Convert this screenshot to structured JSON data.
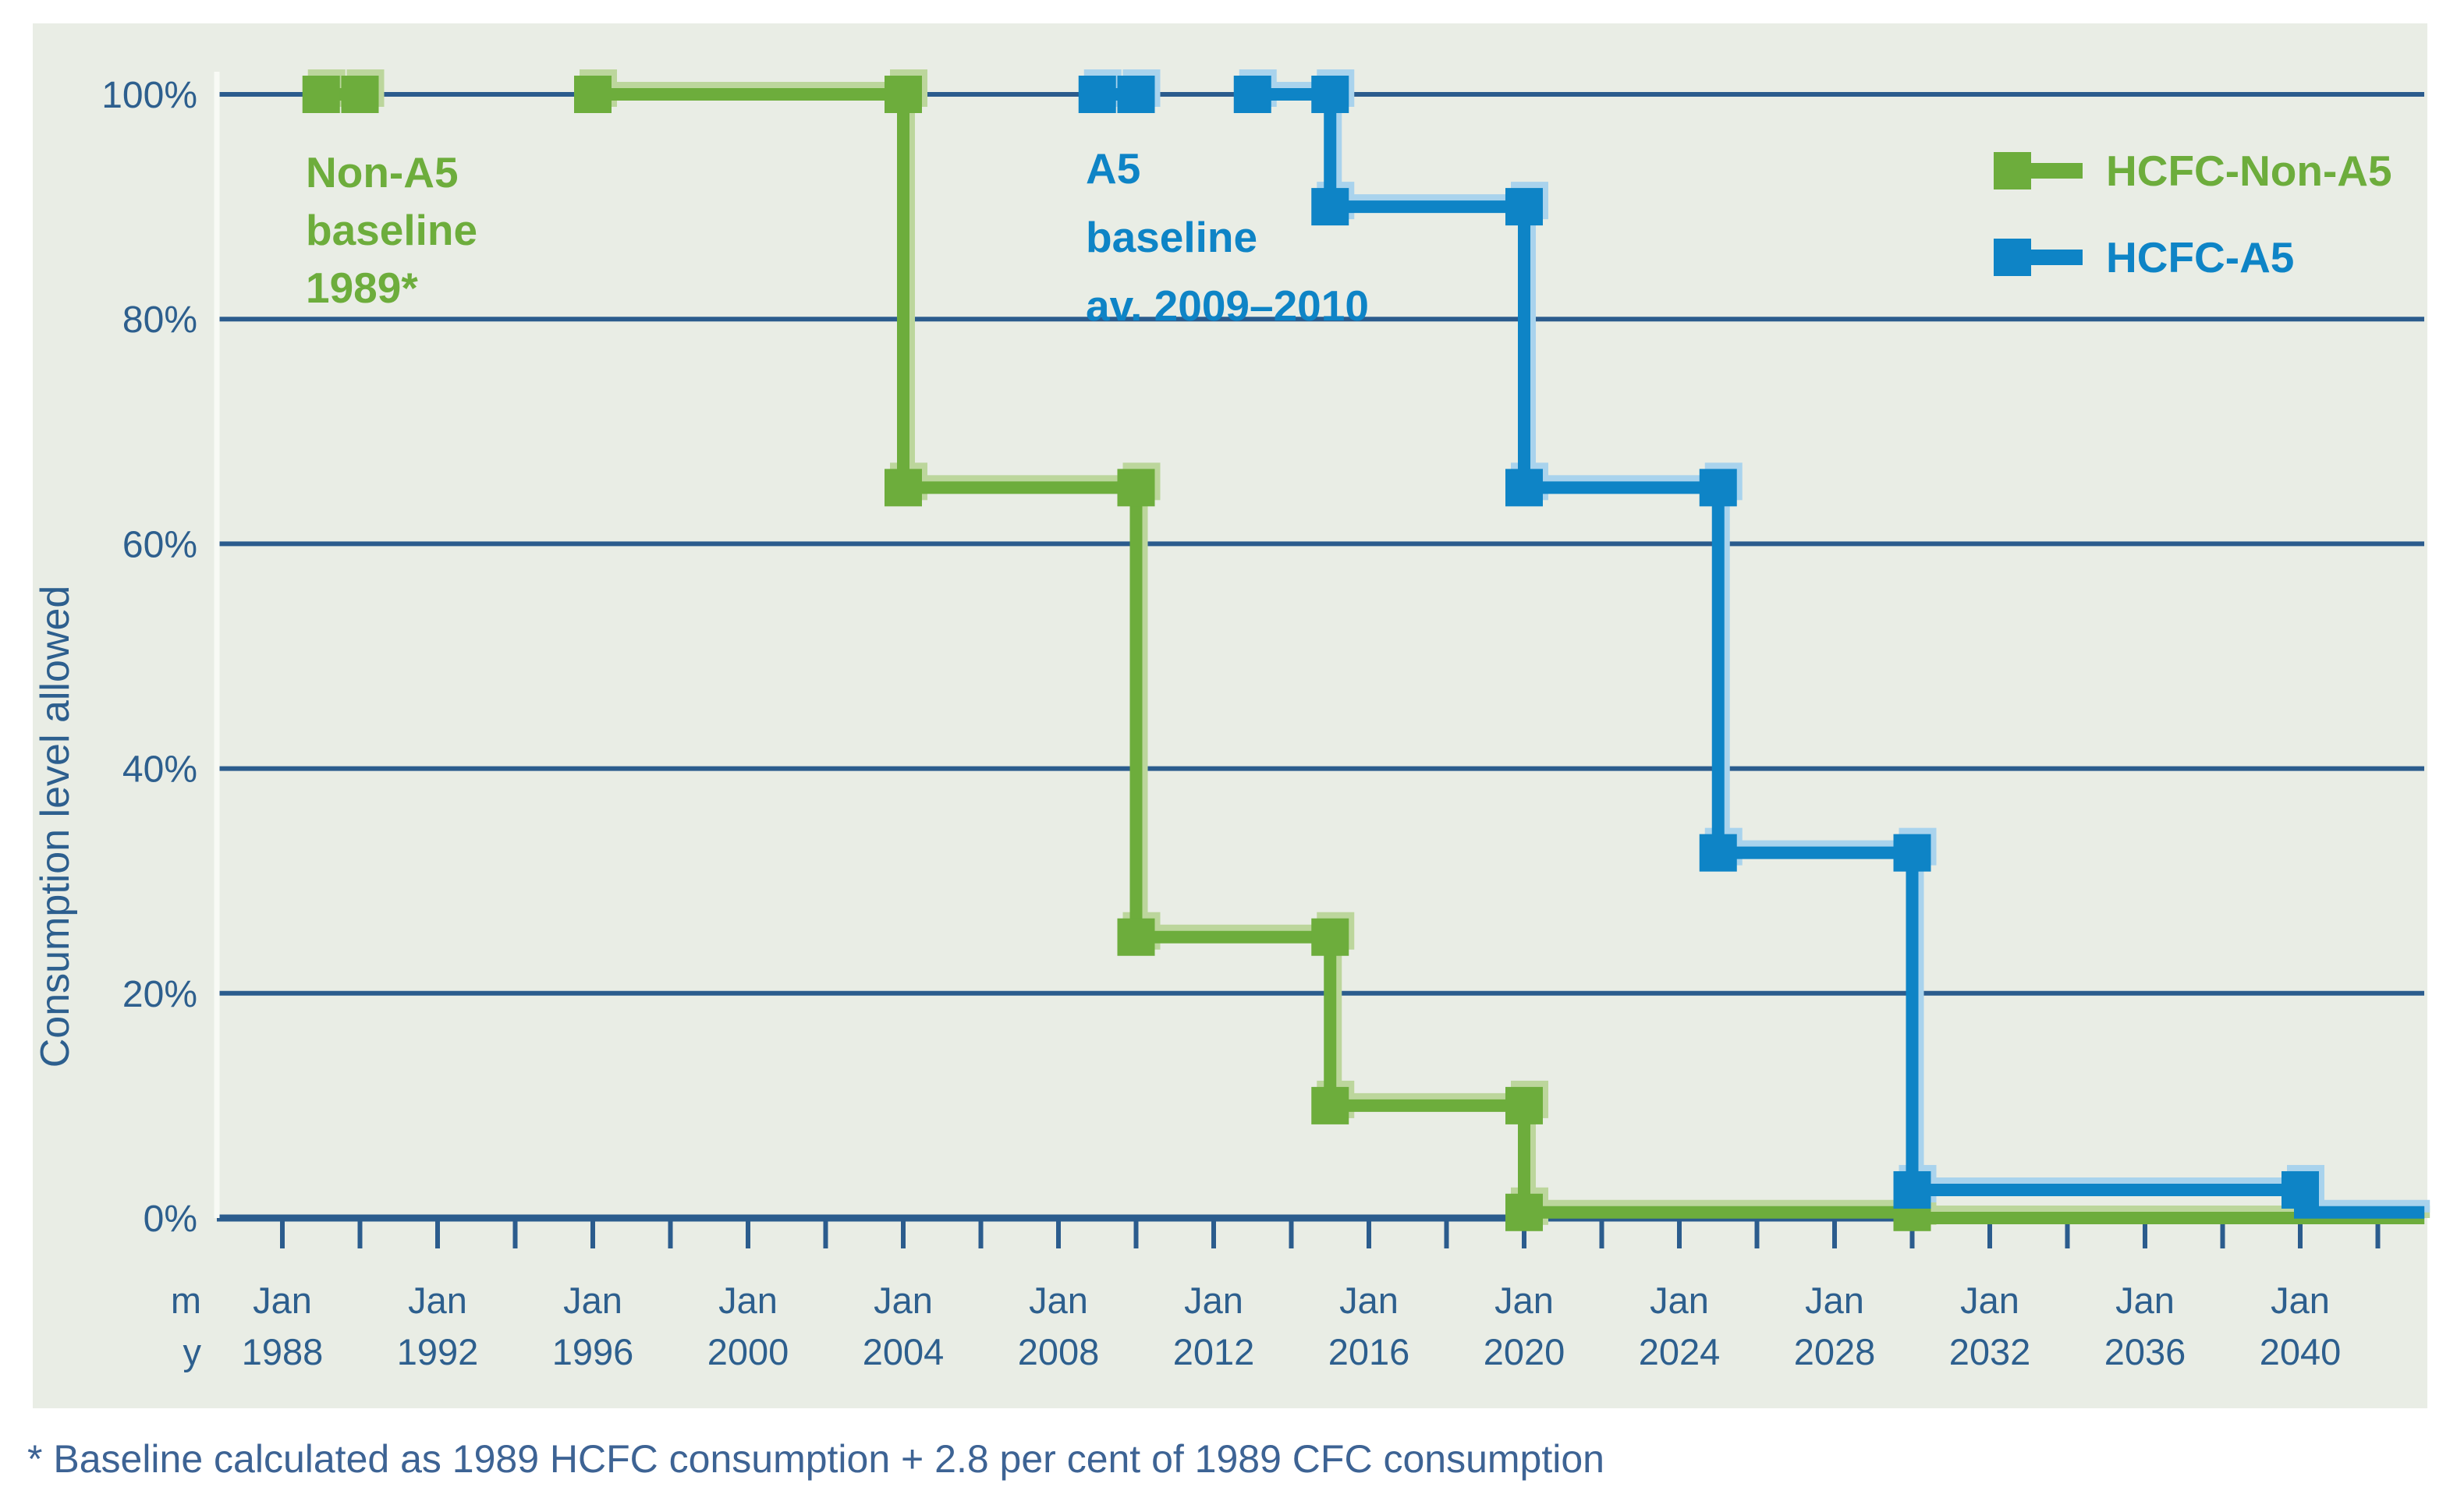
{
  "chart_data": {
    "type": "line",
    "subtype": "step",
    "title": "",
    "ylabel": "Consumption level allowed",
    "grid": true,
    "x_axis": {
      "month_row_label": "m",
      "year_row_label": "y",
      "month_label": "Jan",
      "major_tick_years": [
        1988,
        1992,
        1996,
        2000,
        2004,
        2008,
        2012,
        2016,
        2020,
        2024,
        2028,
        2032,
        2036,
        2040
      ],
      "minor_tick_step_years": 2,
      "minor_tick_start": 1988,
      "minor_tick_end": 2042,
      "plot_end_year": 2043.2
    },
    "y_axis": {
      "tick_labels": [
        "0%",
        "20%",
        "40%",
        "60%",
        "80%",
        "100%"
      ],
      "tick_values": [
        0,
        20,
        40,
        60,
        80,
        100
      ],
      "range": [
        0,
        100
      ]
    },
    "series": [
      {
        "name": "HCFC-Non-A5",
        "color": "#6dad3c",
        "halo_color": "#bcd69c",
        "baseline_points": [
          [
            1989,
            100
          ],
          [
            1990,
            100
          ]
        ],
        "points": [
          [
            1996,
            100
          ],
          [
            2004,
            100
          ],
          [
            2004,
            65
          ],
          [
            2010,
            65
          ],
          [
            2010,
            25
          ],
          [
            2015,
            25
          ],
          [
            2015,
            10
          ],
          [
            2020,
            10
          ],
          [
            2020,
            0.5
          ],
          [
            2030,
            0.5
          ],
          [
            2030,
            0
          ],
          [
            2043.2,
            0
          ]
        ],
        "markers": [
          [
            1989,
            100
          ],
          [
            1990,
            100
          ],
          [
            1996,
            100
          ],
          [
            2004,
            100
          ],
          [
            2004,
            65
          ],
          [
            2010,
            65
          ],
          [
            2010,
            25
          ],
          [
            2015,
            25
          ],
          [
            2015,
            10
          ],
          [
            2020,
            10
          ],
          [
            2020,
            0.5
          ],
          [
            2030,
            0.5
          ]
        ],
        "annotation": {
          "lines": [
            "Non-A5",
            "baseline",
            "1989*"
          ],
          "x": 392,
          "y": 240,
          "line_height": 74
        }
      },
      {
        "name": "HCFC-A5",
        "color": "#0e84c6",
        "halo_color": "#a9d3ed",
        "baseline_points": [
          [
            2009,
            100
          ],
          [
            2010,
            100
          ]
        ],
        "points": [
          [
            2013,
            100
          ],
          [
            2015,
            100
          ],
          [
            2015,
            90
          ],
          [
            2020,
            90
          ],
          [
            2020,
            65
          ],
          [
            2025,
            65
          ],
          [
            2025,
            32.5
          ],
          [
            2030,
            32.5
          ],
          [
            2030,
            2.5
          ],
          [
            2040,
            2.5
          ],
          [
            2040,
            0.5
          ],
          [
            2043.2,
            0.5
          ]
        ],
        "markers": [
          [
            2009,
            100
          ],
          [
            2010,
            100
          ],
          [
            2013,
            100
          ],
          [
            2015,
            100
          ],
          [
            2015,
            90
          ],
          [
            2020,
            90
          ],
          [
            2020,
            65
          ],
          [
            2025,
            65
          ],
          [
            2025,
            32.5
          ],
          [
            2030,
            32.5
          ],
          [
            2030,
            2.5
          ],
          [
            2040,
            2.5
          ]
        ],
        "annotation": {
          "lines": [
            "A5",
            "baseline",
            "av. 2009–2010"
          ],
          "x": 1392,
          "y": 235,
          "line_height": 88
        }
      }
    ],
    "legend": {
      "position": "top-right",
      "entries": [
        "HCFC-Non-A5",
        "HCFC-A5"
      ]
    }
  },
  "footnote": "* Baseline calculated as 1989 HCFC consumption + 2.8 per cent of 1989 CFC consumption",
  "colors": {
    "page_bg": "#ffffff",
    "panel_bg": "#e9ede5",
    "gridline": "#2b5c8d",
    "axis_line": "#2b578a",
    "y_axis_line": "#f8faf5",
    "tick_text": "#2d5f8e",
    "footnote_text": "#3d6394"
  }
}
